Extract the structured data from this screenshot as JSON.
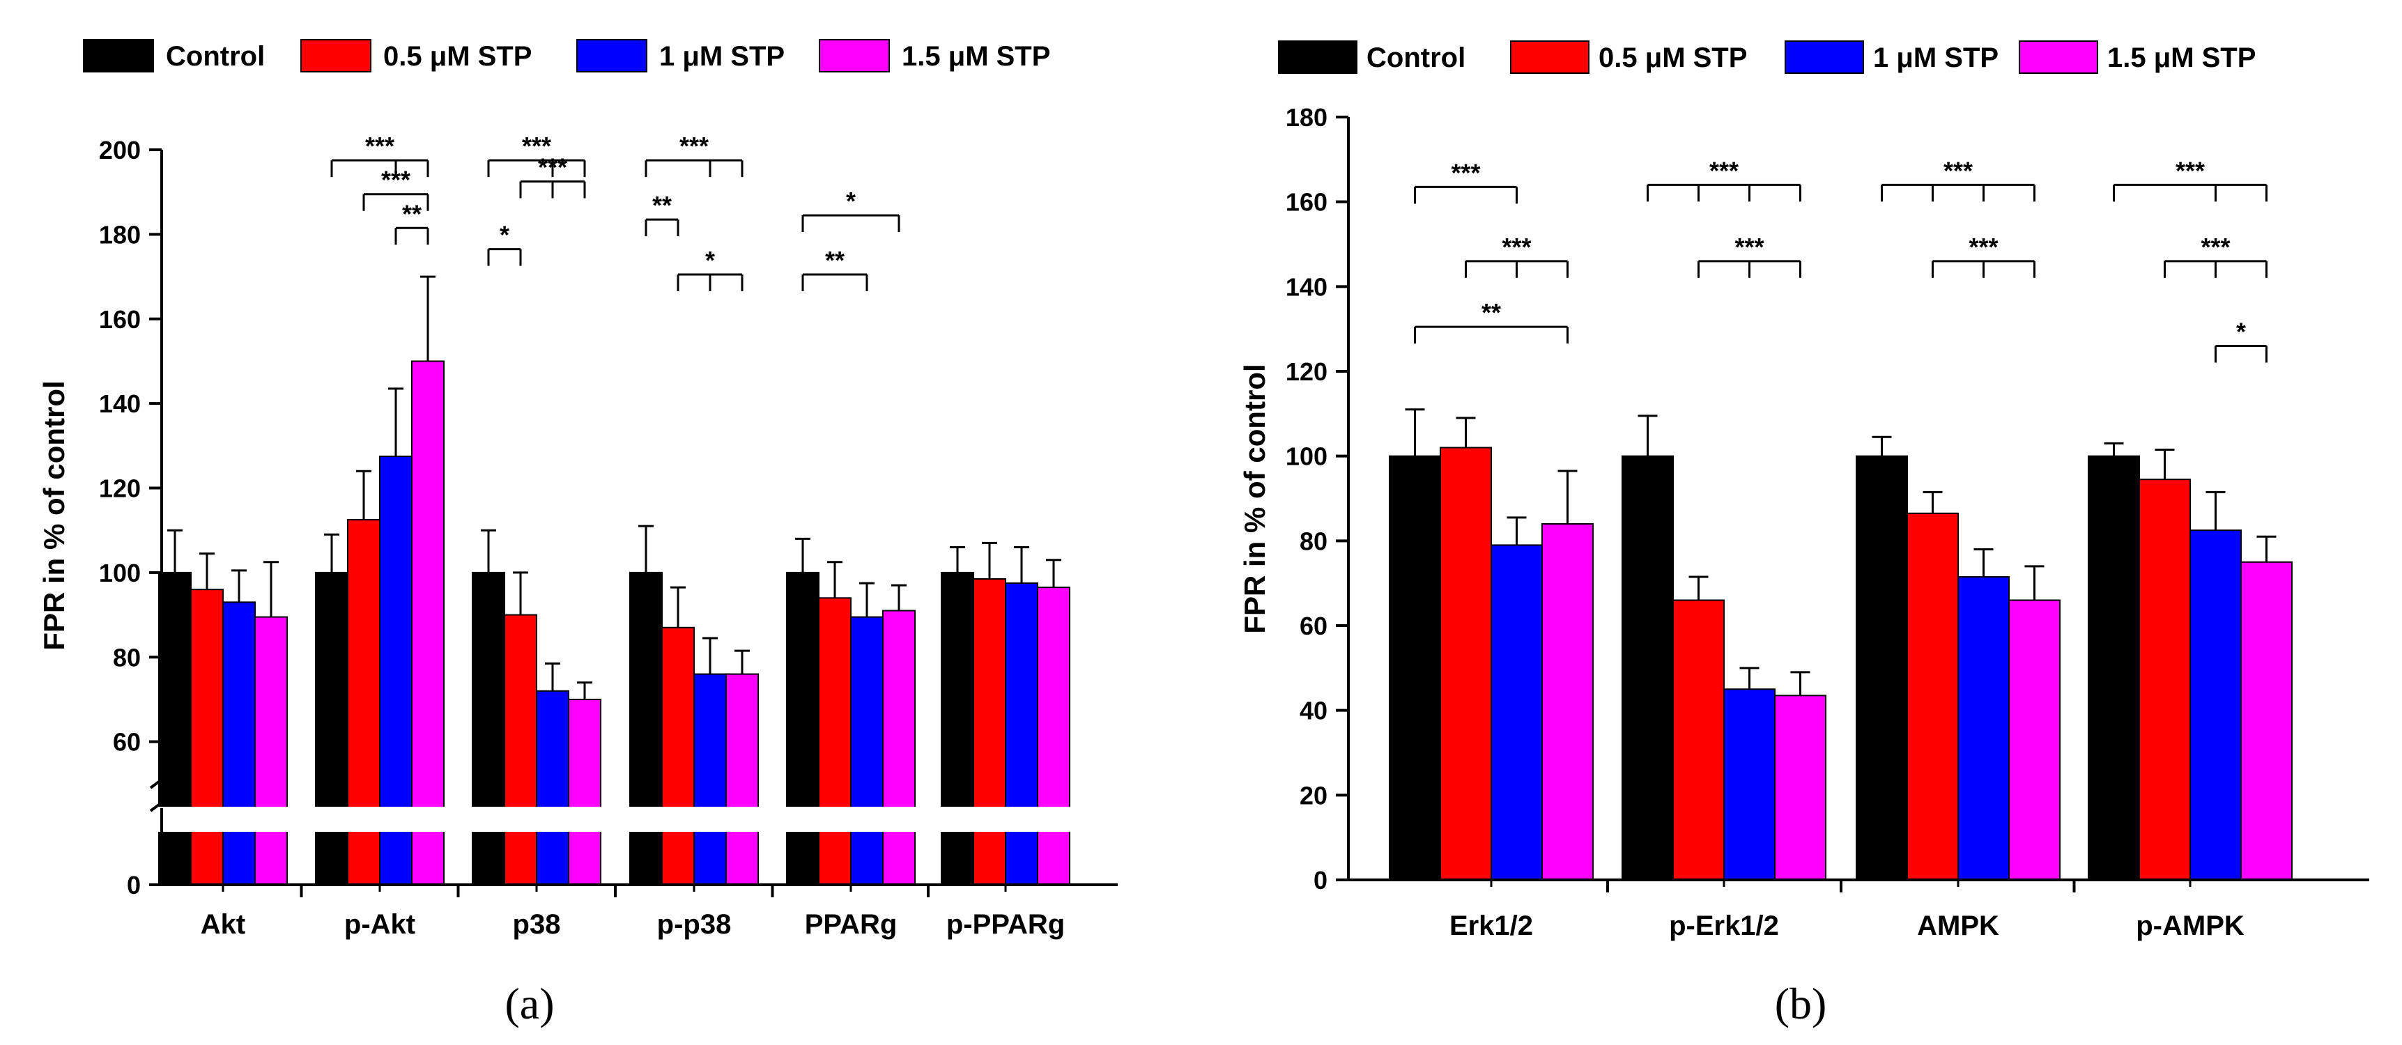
{
  "colors": {
    "Control": "#000000",
    "0.5 μM STP": "#ff0000",
    "1 μM STP": "#0000ff",
    "1.5 μM STP": "#ff00ff"
  },
  "panels": {
    "a": {
      "label": "(a)"
    },
    "b": {
      "label": "(b)"
    }
  },
  "chart_data": [
    {
      "type": "bar",
      "panel": "a",
      "ylabel": "FPR in % of control",
      "xlabel": "",
      "ylim": [
        0,
        200
      ],
      "axis_break": [
        50,
        55
      ],
      "yticks": [
        0,
        60,
        80,
        100,
        120,
        140,
        160,
        180,
        200
      ],
      "legend": [
        "Control",
        "0.5 μM STP",
        "1 μM STP",
        "1.5 μM STP"
      ],
      "legend_position": "top",
      "grid": false,
      "categories": [
        "Akt",
        "p-Akt",
        "p38",
        "p-p38",
        "PPARg",
        "p-PPARg"
      ],
      "series": [
        {
          "name": "Control",
          "values": [
            100,
            100,
            100,
            100,
            100,
            100
          ],
          "errors": [
            10,
            9,
            10,
            11,
            8,
            6
          ]
        },
        {
          "name": "0.5 μM STP",
          "values": [
            96,
            112.5,
            90,
            87,
            94,
            98.5
          ],
          "errors": [
            8.5,
            11.5,
            10,
            9.5,
            8.5,
            8.5
          ]
        },
        {
          "name": "1 μM STP",
          "values": [
            93,
            127.5,
            72,
            76,
            89.5,
            97.5
          ],
          "errors": [
            7.5,
            16,
            6.5,
            8.5,
            8,
            8.5
          ]
        },
        {
          "name": "1.5 μM STP",
          "values": [
            89.5,
            150,
            70,
            76,
            91,
            96.5
          ],
          "errors": [
            13,
            20,
            4,
            5.5,
            6,
            6.5
          ]
        }
      ],
      "significance": [
        {
          "category": "p-Akt",
          "from": 0,
          "to": [
            2,
            3
          ],
          "level": 197.5,
          "label": "***"
        },
        {
          "category": "p-Akt",
          "from": 1,
          "to": [
            3
          ],
          "level": 189.5,
          "label": "***"
        },
        {
          "category": "p-Akt",
          "from": 2,
          "to": [
            3
          ],
          "level": 181.5,
          "label": "**"
        },
        {
          "category": "p38",
          "from": 0,
          "to": [
            2,
            3
          ],
          "level": 197.5,
          "label": "***"
        },
        {
          "category": "p38",
          "from": 1,
          "to": [
            2,
            3
          ],
          "level": 192.5,
          "label": "***"
        },
        {
          "category": "p38",
          "from": 0,
          "to": [
            1
          ],
          "level": 176.5,
          "label": "*"
        },
        {
          "category": "p-p38",
          "from": 0,
          "to": [
            2,
            3
          ],
          "level": 197.5,
          "label": "***"
        },
        {
          "category": "p-p38",
          "from": 0,
          "to": [
            1
          ],
          "level": 183.5,
          "label": "**"
        },
        {
          "category": "p-p38",
          "from": 1,
          "to": [
            2,
            3
          ],
          "level": 170.5,
          "label": "*"
        },
        {
          "category": "PPARg",
          "from": 0,
          "to": [
            3
          ],
          "level": 184.5,
          "label": "*"
        },
        {
          "category": "PPARg",
          "from": 0,
          "to": [
            2
          ],
          "level": 170.5,
          "label": "**"
        }
      ]
    },
    {
      "type": "bar",
      "panel": "b",
      "ylabel": "FPR in % of control",
      "xlabel": "",
      "ylim": [
        0,
        180
      ],
      "yticks": [
        0,
        20,
        40,
        60,
        80,
        100,
        120,
        140,
        160,
        180
      ],
      "legend": [
        "Control",
        "0.5 μM STP",
        "1 μM STP",
        "1.5 μM STP"
      ],
      "legend_position": "top",
      "grid": false,
      "categories": [
        "Erk1/2",
        "p-Erk1/2",
        "AMPK",
        "p-AMPK"
      ],
      "series": [
        {
          "name": "Control",
          "values": [
            100,
            100,
            100,
            100
          ],
          "errors": [
            11,
            9.5,
            4.5,
            3
          ]
        },
        {
          "name": "0.5 μM STP",
          "values": [
            102,
            66,
            86.5,
            94.5
          ],
          "errors": [
            7,
            5.5,
            5,
            7
          ]
        },
        {
          "name": "1 μM STP",
          "values": [
            79,
            45,
            71.5,
            82.5
          ],
          "errors": [
            6.5,
            5,
            6.5,
            9
          ]
        },
        {
          "name": "1.5 μM STP",
          "values": [
            84,
            43.5,
            66,
            75
          ],
          "errors": [
            12.5,
            5.5,
            8,
            6
          ]
        }
      ],
      "significance": [
        {
          "category": "Erk1/2",
          "from": 0,
          "to": [
            2
          ],
          "level": 163.5,
          "label": "***"
        },
        {
          "category": "Erk1/2",
          "from": 1,
          "to": [
            2,
            3
          ],
          "level": 146,
          "label": "***"
        },
        {
          "category": "Erk1/2",
          "from": 0,
          "to": [
            3
          ],
          "level": 130.5,
          "label": "**"
        },
        {
          "category": "p-Erk1/2",
          "from": 0,
          "to": [
            1,
            2,
            3
          ],
          "level": 164,
          "label": "***"
        },
        {
          "category": "p-Erk1/2",
          "from": 1,
          "to": [
            2,
            3
          ],
          "level": 146,
          "label": "***"
        },
        {
          "category": "AMPK",
          "from": 0,
          "to": [
            1,
            2,
            3
          ],
          "level": 164,
          "label": "***"
        },
        {
          "category": "AMPK",
          "from": 1,
          "to": [
            2,
            3
          ],
          "level": 146,
          "label": "***"
        },
        {
          "category": "p-AMPK",
          "from": 0,
          "to": [
            2,
            3
          ],
          "level": 164,
          "label": "***"
        },
        {
          "category": "p-AMPK",
          "from": 1,
          "to": [
            2,
            3
          ],
          "level": 146,
          "label": "***"
        },
        {
          "category": "p-AMPK",
          "from": 2,
          "to": [
            3
          ],
          "level": 126,
          "label": "*"
        }
      ]
    }
  ]
}
